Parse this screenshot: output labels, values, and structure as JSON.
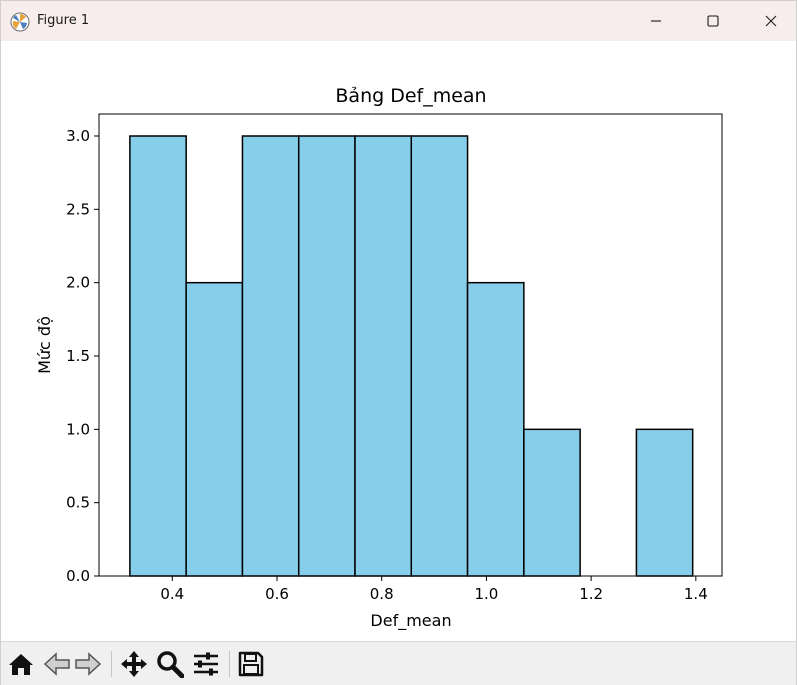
{
  "window": {
    "title": "Figure 1",
    "controls": [
      "minimize-icon",
      "maximize-icon",
      "close-icon"
    ]
  },
  "toolbar": {
    "buttons": [
      "home-icon",
      "back-icon",
      "forward-icon",
      "pan-icon",
      "zoom-icon",
      "configure-subplots-icon",
      "save-icon"
    ]
  },
  "chart_data": {
    "type": "bar",
    "title": "Bảng Def_mean",
    "xlabel": "Def_mean",
    "ylabel": "Mức độ",
    "bin_edges": [
      0.319,
      0.4265,
      0.534,
      0.6415,
      0.749,
      0.8565,
      0.964,
      1.0715,
      1.179,
      1.2865,
      1.394
    ],
    "values": [
      3,
      2,
      3,
      3,
      3,
      3,
      2,
      1,
      0,
      1
    ],
    "xlim": [
      0.26,
      1.45
    ],
    "ylim": [
      0,
      3.15
    ],
    "xticks": [
      0.4,
      0.6,
      0.8,
      1.0,
      1.2,
      1.4
    ],
    "xtick_labels": [
      "0.4",
      "0.6",
      "0.8",
      "1.0",
      "1.2",
      "1.4"
    ],
    "yticks": [
      0,
      0.5,
      1.0,
      1.5,
      2.0,
      2.5,
      3.0
    ],
    "ytick_labels": [
      "0.0",
      "0.5",
      "1.0",
      "1.5",
      "2.0",
      "2.5",
      "3.0"
    ],
    "bar_color": "#87ceeb",
    "edge_color": "#000000",
    "grid": false,
    "legend": "none"
  }
}
